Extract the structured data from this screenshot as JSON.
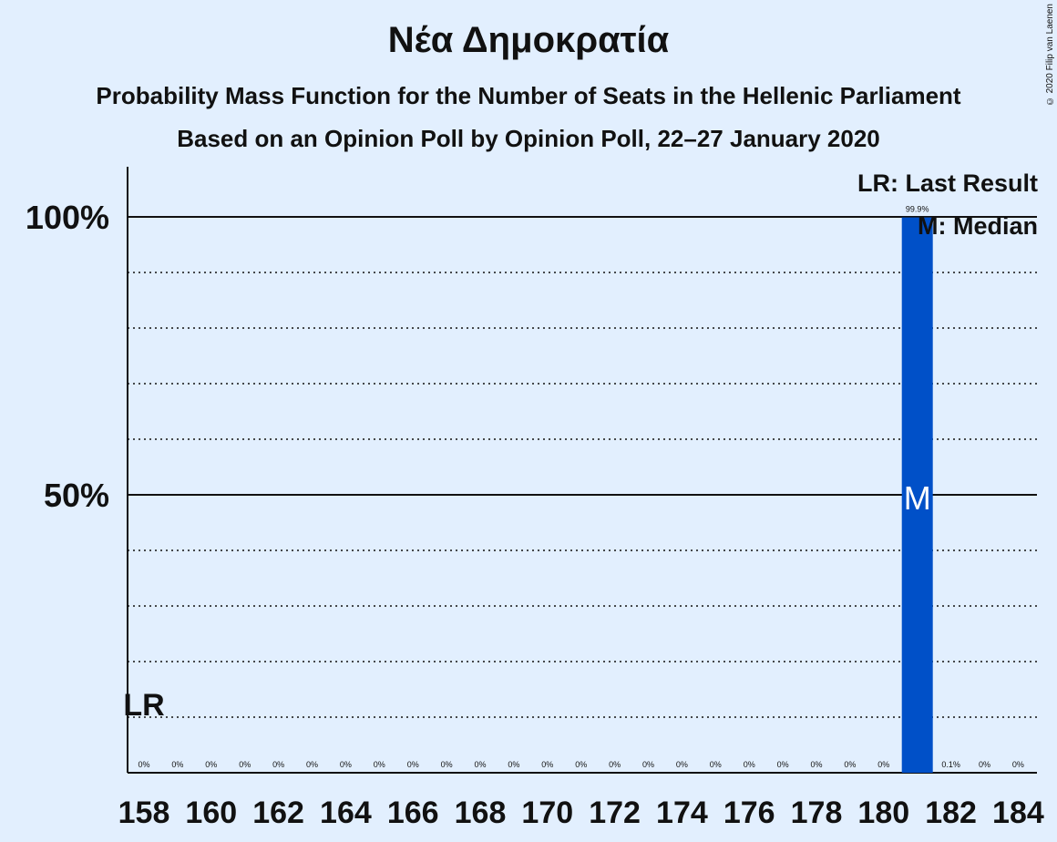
{
  "title": "Νέα Δημοκρατία",
  "subtitle": "Probability Mass Function for the Number of Seats in the Hellenic Parliament",
  "subtitle2": "Based on an Opinion Poll by Opinion Poll, 22–27 January 2020",
  "copyright": "© 2020 Filip van Laenen",
  "legend": {
    "last_result": "LR: Last Result",
    "median": "M: Median"
  },
  "colors": {
    "background": "#e2effe",
    "bar": "#0050c8",
    "text": "#111111"
  },
  "chart_data": {
    "type": "bar",
    "x": [
      158,
      159,
      160,
      161,
      162,
      163,
      164,
      165,
      166,
      167,
      168,
      169,
      170,
      171,
      172,
      173,
      174,
      175,
      176,
      177,
      178,
      179,
      180,
      181,
      182,
      183,
      184
    ],
    "values": [
      0,
      0,
      0,
      0,
      0,
      0,
      0,
      0,
      0,
      0,
      0,
      0,
      0,
      0,
      0,
      0,
      0,
      0,
      0,
      0,
      0,
      0,
      0,
      99.9,
      0.1,
      0,
      0
    ],
    "value_labels": [
      "0%",
      "0%",
      "0%",
      "0%",
      "0%",
      "0%",
      "0%",
      "0%",
      "0%",
      "0%",
      "0%",
      "0%",
      "0%",
      "0%",
      "0%",
      "0%",
      "0%",
      "0%",
      "0%",
      "0%",
      "0%",
      "0%",
      "0%",
      "99.9%",
      "0.1%",
      "0%",
      "0%"
    ],
    "x_tick_labels": [
      "158",
      "160",
      "162",
      "164",
      "166",
      "168",
      "170",
      "172",
      "174",
      "176",
      "178",
      "180",
      "182",
      "184"
    ],
    "y_ticks": [
      {
        "value": 50,
        "label": "50%"
      },
      {
        "value": 100,
        "label": "100%"
      }
    ],
    "ylim": [
      0,
      110
    ],
    "minor_gridlines": [
      10,
      20,
      30,
      40,
      60,
      70,
      80,
      90
    ],
    "last_result": {
      "x": 158,
      "label": "LR"
    },
    "median": {
      "x": 181,
      "label": "M"
    },
    "legend_position": "top-right"
  }
}
